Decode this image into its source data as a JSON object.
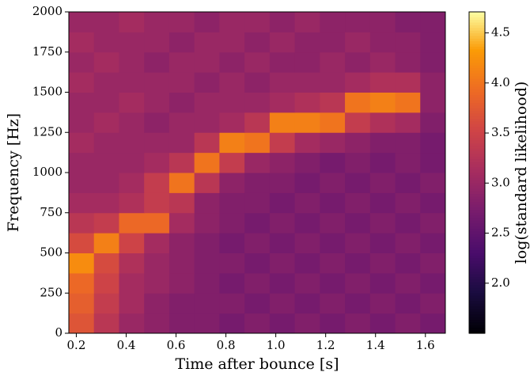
{
  "chart_data": {
    "type": "heatmap",
    "xlabel": "Time after bounce [s]",
    "ylabel": "Frequency [Hz]",
    "colorbar_label": "log(standard likelihood)",
    "colormap": "inferno",
    "xlim": [
      0.17,
      1.68
    ],
    "ylim": [
      0,
      2000
    ],
    "clim": [
      1.5,
      4.71
    ],
    "xticks": [
      0.2,
      0.4,
      0.6,
      0.8,
      {
        "value": 1,
        "label": "1.0"
      },
      1.2,
      1.4,
      1.6
    ],
    "yticks": [
      0,
      250,
      500,
      750,
      1000,
      1250,
      1500,
      1750,
      2000
    ],
    "cticks": [
      {
        "value": 2,
        "label": "2.0"
      },
      2.5,
      {
        "value": 3,
        "label": "3.0"
      },
      3.5,
      {
        "value": 4,
        "label": "4.0"
      },
      4.5
    ],
    "z": [
      [
        3.7,
        3.3,
        3.0,
        2.9,
        2.8,
        2.8,
        2.7,
        2.8,
        2.7,
        2.8,
        2.7,
        2.8,
        2.7,
        2.8,
        2.7
      ],
      [
        3.8,
        3.4,
        3.1,
        2.9,
        2.8,
        2.8,
        2.8,
        2.7,
        2.8,
        2.7,
        2.8,
        2.7,
        2.8,
        2.7,
        2.8
      ],
      [
        3.9,
        3.5,
        3.1,
        3.0,
        2.9,
        2.8,
        2.7,
        2.8,
        2.7,
        2.8,
        2.7,
        2.8,
        2.7,
        2.8,
        2.7
      ],
      [
        4.2,
        3.6,
        3.2,
        3.0,
        2.9,
        2.8,
        2.8,
        2.7,
        2.8,
        2.7,
        2.8,
        2.7,
        2.8,
        2.7,
        2.8
      ],
      [
        3.6,
        4.1,
        3.5,
        3.1,
        2.9,
        2.8,
        2.7,
        2.8,
        2.7,
        2.8,
        2.7,
        2.8,
        2.7,
        2.8,
        2.7
      ],
      [
        3.3,
        3.4,
        3.9,
        3.9,
        3.1,
        2.9,
        2.8,
        2.7,
        2.8,
        2.7,
        2.8,
        2.7,
        2.8,
        2.7,
        2.8
      ],
      [
        3.1,
        3.1,
        3.2,
        3.4,
        3.3,
        2.9,
        2.8,
        2.8,
        2.7,
        2.8,
        2.7,
        2.8,
        2.7,
        2.8,
        2.7
      ],
      [
        3.0,
        3.0,
        3.1,
        3.4,
        4.0,
        3.3,
        2.9,
        2.8,
        2.8,
        2.7,
        2.8,
        2.7,
        2.8,
        2.7,
        2.8
      ],
      [
        3.0,
        3.0,
        3.0,
        3.1,
        3.3,
        4.0,
        3.4,
        3.0,
        2.9,
        2.8,
        2.7,
        2.8,
        2.7,
        2.8,
        2.7
      ],
      [
        3.1,
        3.0,
        3.0,
        3.0,
        3.0,
        3.3,
        4.1,
        4.0,
        3.4,
        3.1,
        3.0,
        2.9,
        2.8,
        2.8,
        2.7
      ],
      [
        3.0,
        3.1,
        3.0,
        2.9,
        3.0,
        3.0,
        3.1,
        3.3,
        4.1,
        4.1,
        4.0,
        3.4,
        3.2,
        3.1,
        2.8
      ],
      [
        3.0,
        3.0,
        3.1,
        3.0,
        2.9,
        3.0,
        3.0,
        3.0,
        3.1,
        3.2,
        3.3,
        4.0,
        4.1,
        4.0,
        2.9
      ],
      [
        3.1,
        3.0,
        3.0,
        3.0,
        3.0,
        2.9,
        3.0,
        2.9,
        3.0,
        3.0,
        3.0,
        3.1,
        3.2,
        3.2,
        2.9
      ],
      [
        3.0,
        3.1,
        3.0,
        2.9,
        3.0,
        3.0,
        2.9,
        3.0,
        2.9,
        2.9,
        3.0,
        2.9,
        3.0,
        2.9,
        2.8
      ],
      [
        3.1,
        3.0,
        3.0,
        3.0,
        2.9,
        3.0,
        3.0,
        2.9,
        3.0,
        2.9,
        2.9,
        3.0,
        2.9,
        2.9,
        2.8
      ],
      [
        3.0,
        3.0,
        3.1,
        3.0,
        3.0,
        2.9,
        3.0,
        3.0,
        2.9,
        3.0,
        2.9,
        2.9,
        2.9,
        2.8,
        2.8
      ]
    ]
  }
}
